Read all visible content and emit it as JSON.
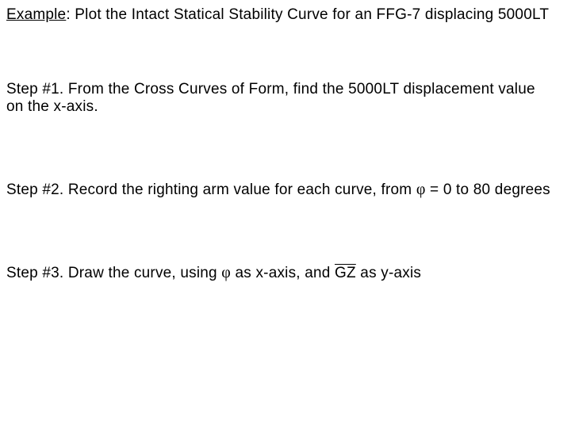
{
  "title": {
    "label": "Example",
    "rest": ":  Plot the Intact Statical Stability Curve for an FFG-7 displacing 5000LT"
  },
  "steps": {
    "s1a": "Step #1.  From the Cross Curves of Form, find the 5000LT displacement value",
    "s1b": "on the x-axis.",
    "s2a": "Step #2.  Record the righting arm value for each curve, from ",
    "s2_phi": "φ",
    "s2b": " = 0 to 80 degrees",
    "s3a": "Step #3.  Draw the curve, using ",
    "s3_phi": "φ",
    "s3b": " as x-axis, and ",
    "s3_gz": "GZ",
    "s3c": " as y-axis"
  },
  "colors": {
    "text": "#000000",
    "background": "#ffffff"
  },
  "typography": {
    "body_font": "Arial",
    "body_size_pt": 14,
    "greek_font": "Times New Roman"
  }
}
